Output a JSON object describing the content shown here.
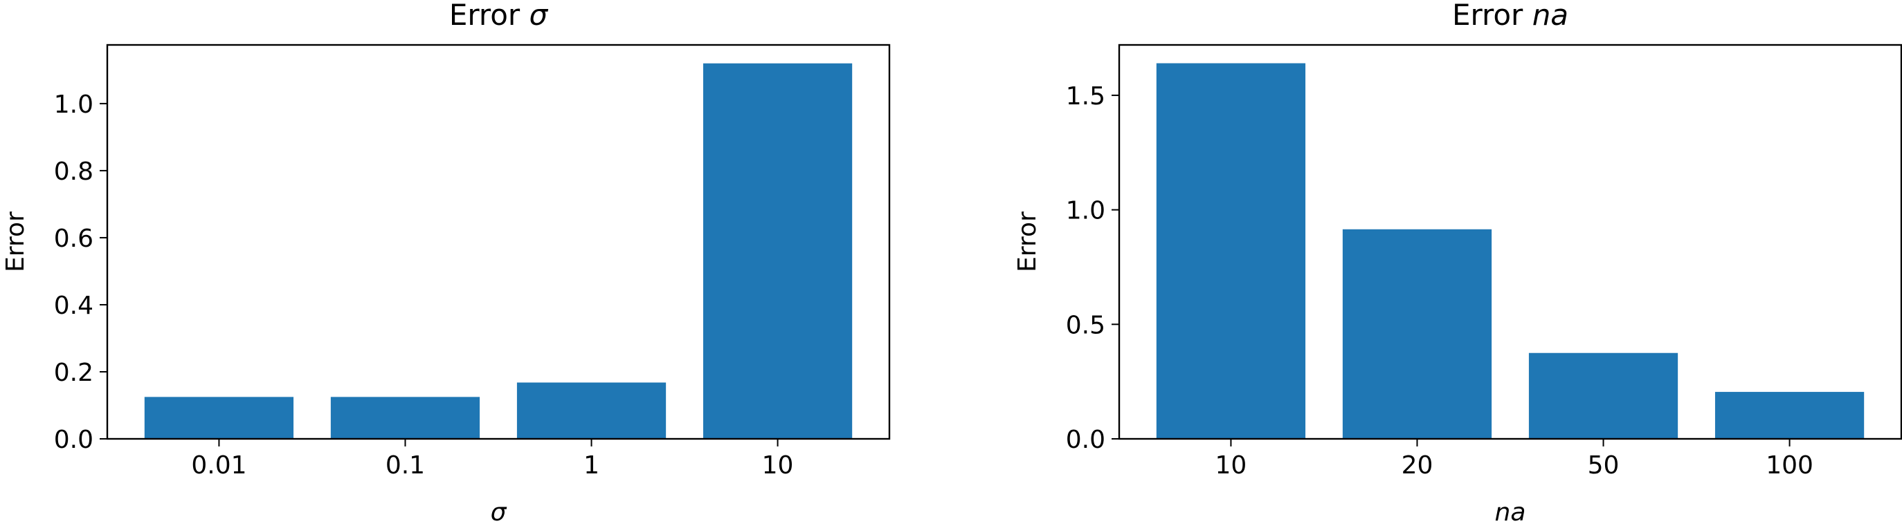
{
  "chart_data": [
    {
      "type": "bar",
      "title": "Error",
      "title_symbol": "σ",
      "xlabel": "σ",
      "ylabel": "Error",
      "categories": [
        "0.01",
        "0.1",
        "1",
        "10"
      ],
      "values": [
        0.125,
        0.125,
        0.168,
        1.12
      ],
      "ylim": [
        0,
        1.175
      ],
      "yticks": [
        "0.0",
        "0.2",
        "0.4",
        "0.6",
        "0.8",
        "1.0"
      ],
      "ytick_values": [
        0,
        0.2,
        0.4,
        0.6,
        0.8,
        1.0
      ],
      "grid": false,
      "color": "#1f77b4"
    },
    {
      "type": "bar",
      "title": "Error",
      "title_symbol": "na",
      "xlabel": "na",
      "ylabel": "Error",
      "categories": [
        "10",
        "20",
        "50",
        "100"
      ],
      "values": [
        1.64,
        0.915,
        0.375,
        0.205
      ],
      "ylim": [
        0,
        1.72
      ],
      "yticks": [
        "0.0",
        "0.5",
        "1.0",
        "1.5"
      ],
      "ytick_values": [
        0,
        0.5,
        1.0,
        1.5
      ],
      "grid": false,
      "color": "#1f77b4"
    }
  ]
}
